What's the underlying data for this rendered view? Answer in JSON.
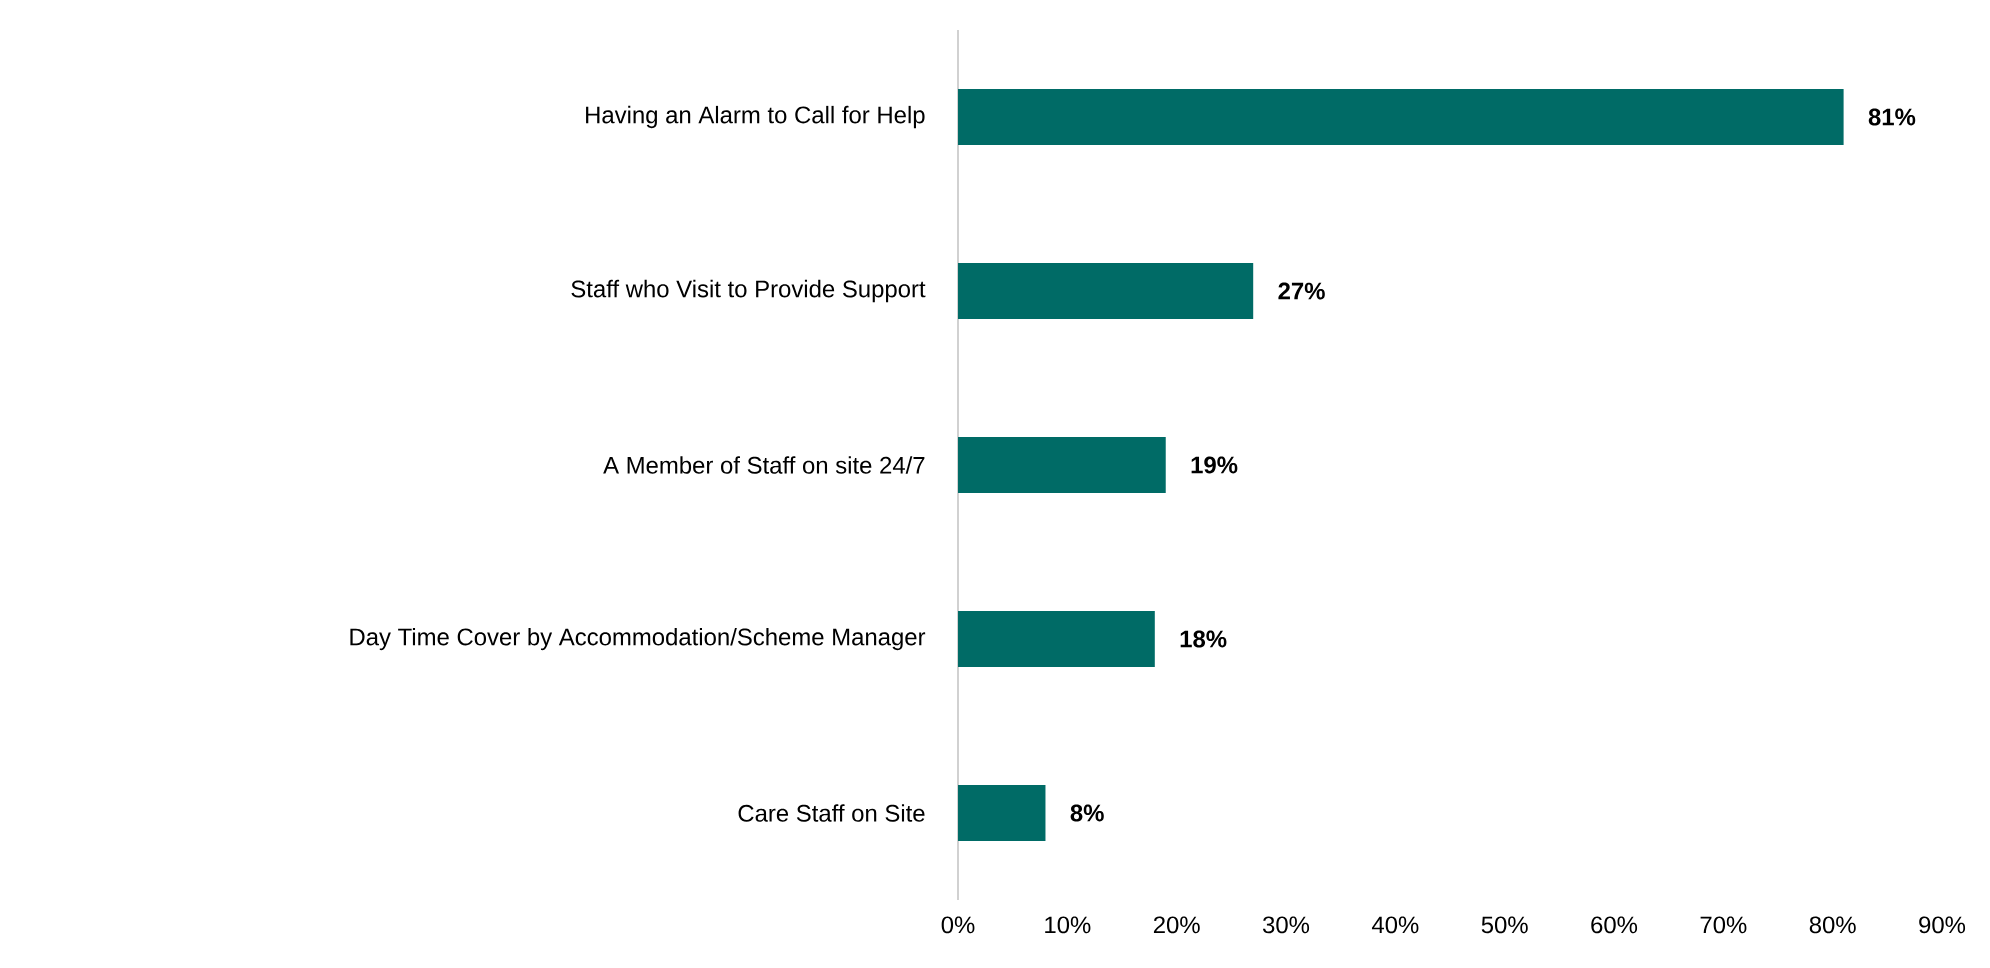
{
  "chart_data": {
    "type": "bar",
    "orientation": "horizontal",
    "categories": [
      "Having an Alarm to Call for Help",
      "Staff who Visit to Provide Support",
      "A Member of Staff on site 24/7",
      "Day Time Cover by Accommodation/Scheme Manager",
      "Care Staff on Site"
    ],
    "values": [
      81,
      27,
      19,
      18,
      8
    ],
    "value_labels": [
      "81%",
      "27%",
      "19%",
      "18%",
      "8%"
    ],
    "color": "#006b66",
    "xlim": [
      0,
      90
    ],
    "xticks": [
      {
        "value": 0,
        "label": "0%"
      },
      {
        "value": 10,
        "label": "10%"
      },
      {
        "value": 20,
        "label": "20%"
      },
      {
        "value": 30,
        "label": "30%"
      },
      {
        "value": 40,
        "label": "40%"
      },
      {
        "value": 50,
        "label": "50%"
      },
      {
        "value": 60,
        "label": "60%"
      },
      {
        "value": 70,
        "label": "70%"
      },
      {
        "value": 80,
        "label": "80%"
      },
      {
        "value": 90,
        "label": "90%"
      }
    ],
    "grid": false
  }
}
